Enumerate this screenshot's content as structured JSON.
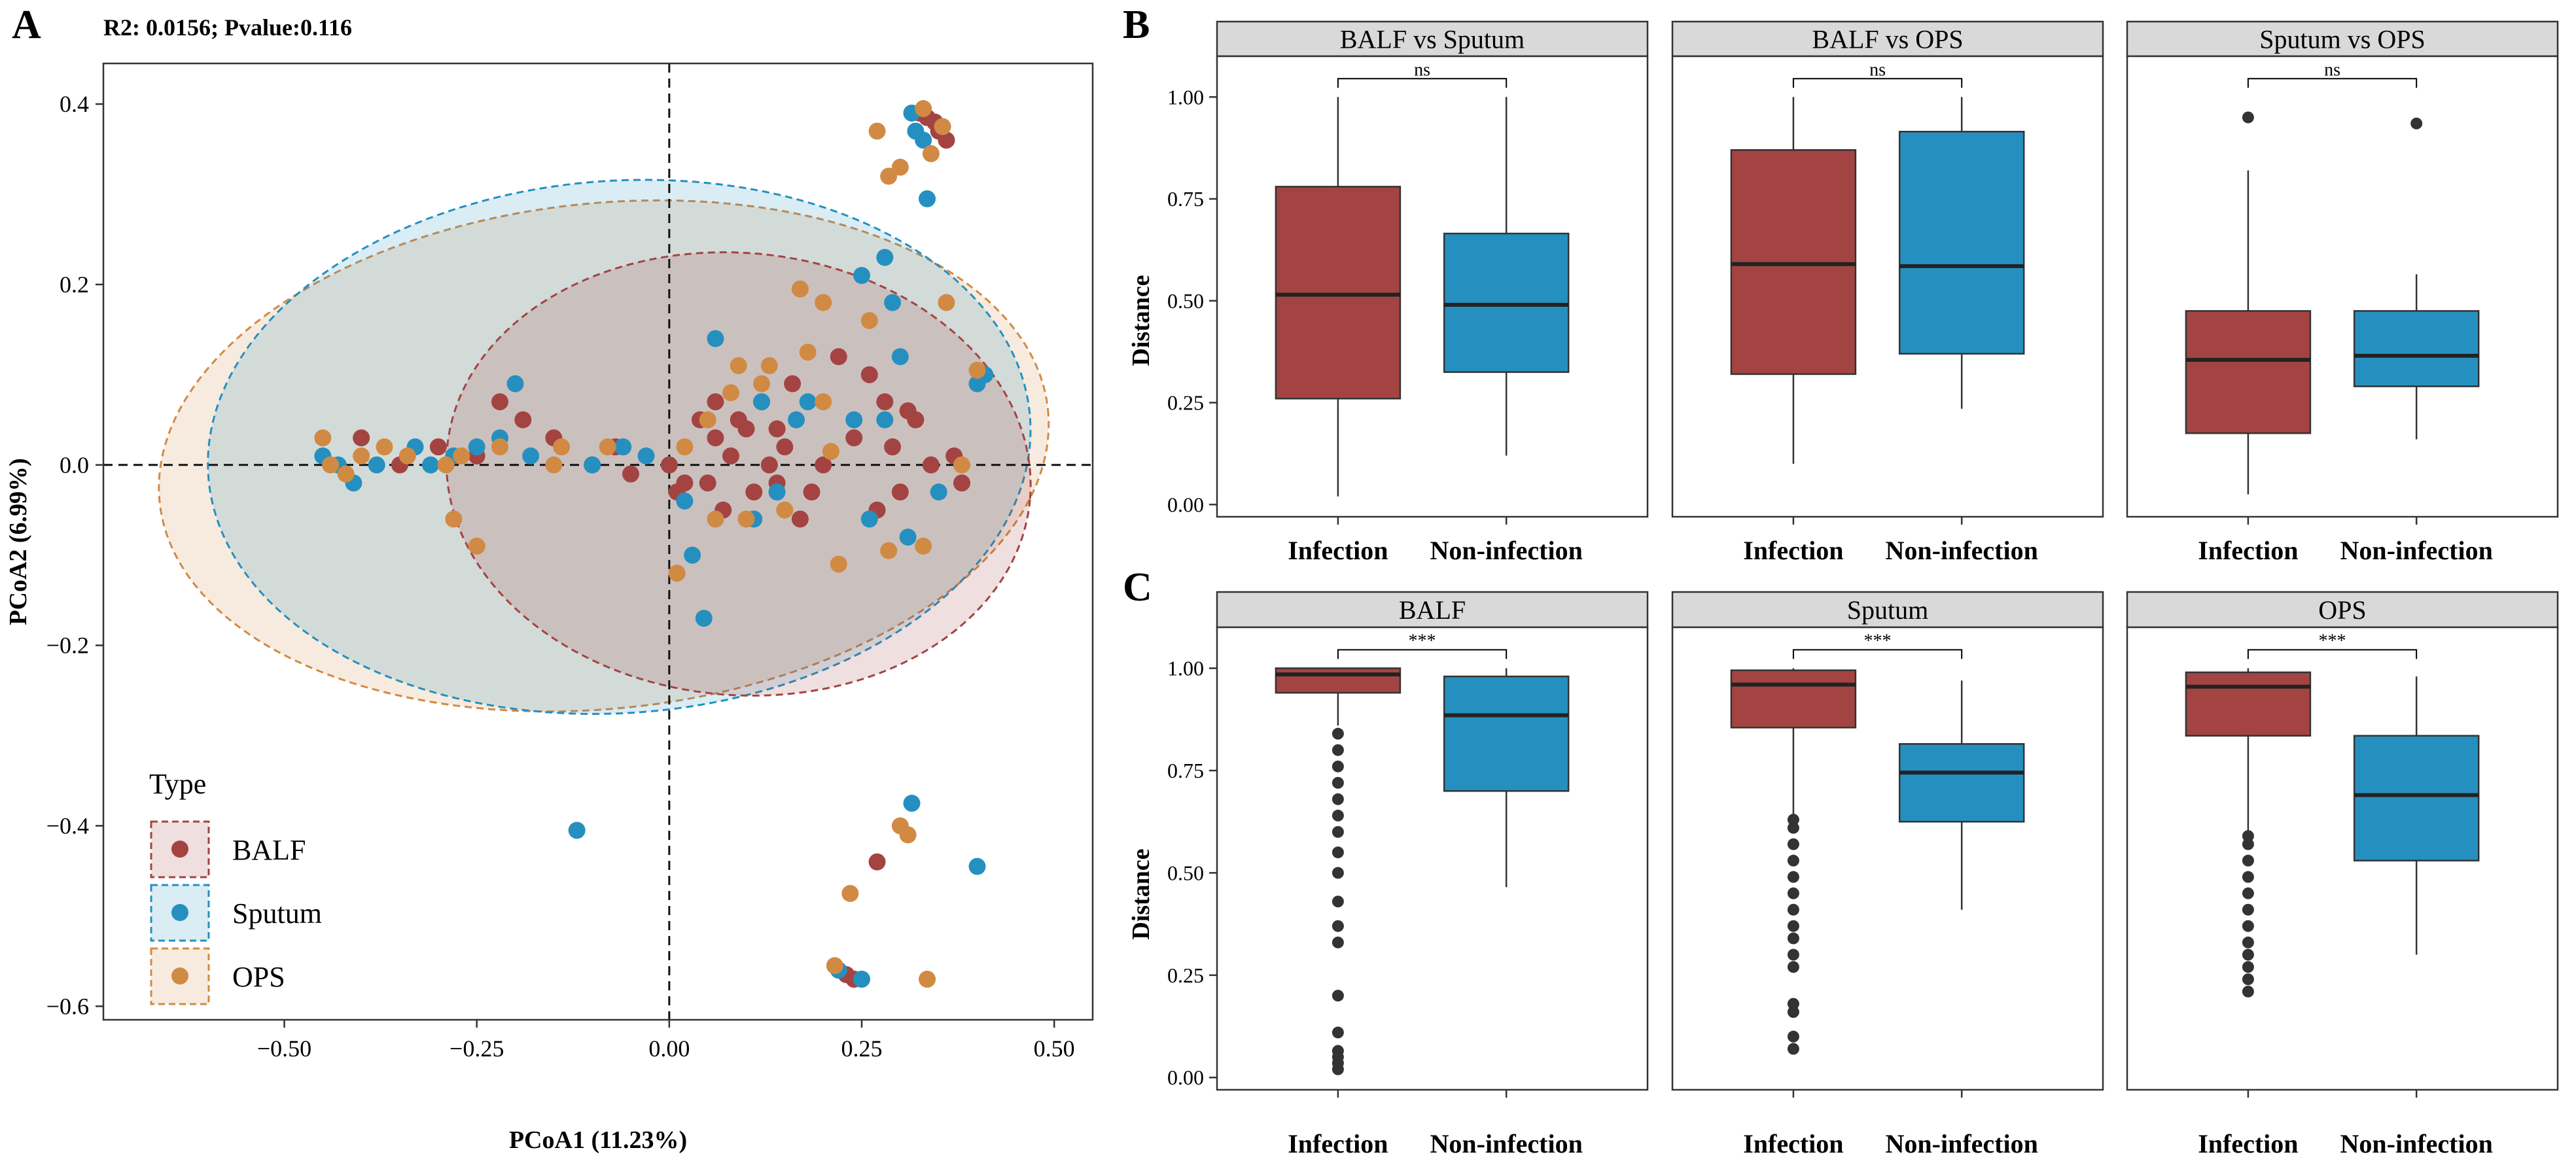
{
  "colors": {
    "BALF": "#a34442",
    "Sputum": "#2590bf",
    "OPS": "#d18a43",
    "strip_bg": "#d9d9d9",
    "panel_border": "#333333"
  },
  "chart_data": [
    {
      "panel": "A",
      "type": "scatter",
      "title": "R2: 0.0156; Pvalue:0.116",
      "xlabel": "PCoA1 (11.23%)",
      "ylabel": "PCoA2 (6.99%)",
      "xlim": [
        -0.735,
        0.55
      ],
      "ylim": [
        -0.615,
        0.445
      ],
      "xticks": [
        -0.5,
        -0.25,
        0.0,
        0.25,
        0.5
      ],
      "xtick_labels": [
        "−0.50",
        "−0.25",
        "0.00",
        "0.25",
        "0.50"
      ],
      "yticks": [
        -0.6,
        -0.4,
        -0.2,
        0.0,
        0.2,
        0.4
      ],
      "ytick_labels": [
        "−0.6",
        "−0.4",
        "−0.2",
        "0.0",
        "0.2",
        "0.4"
      ],
      "reference_lines": {
        "x": 0,
        "y": 0
      },
      "legend": {
        "title": "Type",
        "position": "bottom-left",
        "entries": [
          "BALF",
          "Sputum",
          "OPS"
        ]
      },
      "ellipses": [
        {
          "group": "OPS",
          "cx": -0.085,
          "cy": 0.01,
          "rx": 0.58,
          "ry": 0.28,
          "angle_deg": 6
        },
        {
          "group": "Sputum",
          "cx": -0.065,
          "cy": 0.02,
          "rx": 0.535,
          "ry": 0.295,
          "angle_deg": 4
        },
        {
          "group": "BALF",
          "cx": 0.09,
          "cy": -0.01,
          "rx": 0.38,
          "ry": 0.245,
          "angle_deg": -5
        }
      ],
      "series": [
        {
          "name": "BALF",
          "points": [
            [
              0.325,
              0.39
            ],
            [
              0.335,
              0.385
            ],
            [
              0.345,
              0.38
            ],
            [
              0.35,
              0.37
            ],
            [
              0.36,
              0.36
            ],
            [
              -0.22,
              0.07
            ],
            [
              -0.19,
              0.05
            ],
            [
              -0.15,
              0.03
            ],
            [
              -0.1,
              0.0
            ],
            [
              -0.05,
              -0.01
            ],
            [
              0.0,
              0.0
            ],
            [
              0.02,
              -0.02
            ],
            [
              0.04,
              0.05
            ],
            [
              0.06,
              0.03
            ],
            [
              0.08,
              0.01
            ],
            [
              0.1,
              0.04
            ],
            [
              0.12,
              0.07
            ],
            [
              0.14,
              -0.02
            ],
            [
              0.15,
              0.02
            ],
            [
              0.17,
              -0.06
            ],
            [
              0.2,
              0.0
            ],
            [
              0.22,
              0.12
            ],
            [
              0.26,
              0.1
            ],
            [
              0.28,
              0.07
            ],
            [
              0.3,
              -0.03
            ],
            [
              0.32,
              0.05
            ],
            [
              0.34,
              0.0
            ],
            [
              0.05,
              -0.02
            ],
            [
              0.07,
              -0.05
            ],
            [
              0.09,
              0.05
            ],
            [
              0.11,
              -0.03
            ],
            [
              0.13,
              0.0
            ],
            [
              0.16,
              0.09
            ],
            [
              -0.4,
              0.03
            ],
            [
              -0.35,
              0.0
            ],
            [
              -0.3,
              0.02
            ],
            [
              -0.25,
              0.01
            ],
            [
              0.24,
              0.03
            ],
            [
              0.27,
              -0.05
            ],
            [
              0.29,
              0.02
            ],
            [
              0.31,
              0.06
            ],
            [
              0.37,
              0.01
            ],
            [
              0.38,
              -0.02
            ],
            [
              0.185,
              -0.03
            ],
            [
              0.14,
              0.04
            ],
            [
              0.06,
              0.07
            ],
            [
              0.01,
              -0.03
            ],
            [
              -0.07,
              0.02
            ],
            [
              0.27,
              -0.44
            ],
            [
              0.23,
              -0.565
            ],
            [
              0.24,
              -0.57
            ]
          ]
        },
        {
          "name": "Sputum",
          "points": [
            [
              0.315,
              0.39
            ],
            [
              0.32,
              0.37
            ],
            [
              0.33,
              0.36
            ],
            [
              0.335,
              0.295
            ],
            [
              0.28,
              0.23
            ],
            [
              0.29,
              0.18
            ],
            [
              0.25,
              0.21
            ],
            [
              0.3,
              0.12
            ],
            [
              0.28,
              0.05
            ],
            [
              0.31,
              -0.08
            ],
            [
              0.35,
              -0.03
            ],
            [
              0.41,
              0.1
            ],
            [
              0.4,
              0.09
            ],
            [
              -0.45,
              0.01
            ],
            [
              -0.43,
              0.0
            ],
            [
              -0.41,
              -0.02
            ],
            [
              -0.38,
              0.0
            ],
            [
              -0.33,
              0.02
            ],
            [
              -0.31,
              0.0
            ],
            [
              -0.28,
              0.01
            ],
            [
              -0.25,
              0.02
            ],
            [
              -0.22,
              0.03
            ],
            [
              -0.18,
              0.01
            ],
            [
              -0.2,
              0.09
            ],
            [
              -0.1,
              0.0
            ],
            [
              -0.06,
              0.02
            ],
            [
              -0.03,
              0.01
            ],
            [
              0.02,
              -0.04
            ],
            [
              0.06,
              0.14
            ],
            [
              0.12,
              0.07
            ],
            [
              0.14,
              -0.03
            ],
            [
              0.18,
              0.07
            ],
            [
              0.24,
              0.05
            ],
            [
              0.26,
              -0.06
            ],
            [
              0.03,
              -0.1
            ],
            [
              0.045,
              -0.17
            ],
            [
              -0.12,
              -0.405
            ],
            [
              0.315,
              -0.375
            ],
            [
              0.4,
              -0.445
            ],
            [
              0.22,
              -0.56
            ],
            [
              0.25,
              -0.57
            ],
            [
              0.165,
              0.05
            ],
            [
              0.11,
              -0.06
            ]
          ]
        },
        {
          "name": "OPS",
          "points": [
            [
              0.33,
              0.395
            ],
            [
              0.355,
              0.375
            ],
            [
              0.34,
              0.345
            ],
            [
              0.3,
              0.33
            ],
            [
              0.285,
              0.32
            ],
            [
              0.27,
              0.37
            ],
            [
              0.36,
              0.18
            ],
            [
              0.4,
              0.105
            ],
            [
              0.38,
              0.0
            ],
            [
              0.33,
              -0.09
            ],
            [
              0.285,
              -0.095
            ],
            [
              0.26,
              0.16
            ],
            [
              0.2,
              0.18
            ],
            [
              0.17,
              0.195
            ],
            [
              0.18,
              0.125
            ],
            [
              0.13,
              0.11
            ],
            [
              0.08,
              0.08
            ],
            [
              0.05,
              0.05
            ],
            [
              0.02,
              0.02
            ],
            [
              0.06,
              -0.06
            ],
            [
              0.1,
              -0.06
            ],
            [
              0.15,
              -0.05
            ],
            [
              0.2,
              0.07
            ],
            [
              0.21,
              0.015
            ],
            [
              -0.45,
              0.03
            ],
            [
              -0.44,
              0.0
            ],
            [
              -0.42,
              -0.01
            ],
            [
              -0.4,
              0.01
            ],
            [
              -0.37,
              0.02
            ],
            [
              -0.34,
              0.01
            ],
            [
              -0.29,
              0.0
            ],
            [
              -0.27,
              0.01
            ],
            [
              -0.22,
              0.02
            ],
            [
              -0.15,
              0.0
            ],
            [
              -0.08,
              0.02
            ],
            [
              -0.14,
              0.02
            ],
            [
              -0.25,
              -0.09
            ],
            [
              -0.28,
              -0.06
            ],
            [
              0.01,
              -0.12
            ],
            [
              0.22,
              -0.11
            ],
            [
              0.09,
              0.11
            ],
            [
              0.12,
              0.09
            ],
            [
              0.3,
              -0.4
            ],
            [
              0.31,
              -0.41
            ],
            [
              0.235,
              -0.475
            ],
            [
              0.215,
              -0.555
            ],
            [
              0.335,
              -0.57
            ]
          ]
        }
      ]
    },
    {
      "panel": "B",
      "type": "boxplot",
      "ylabel": "Distance",
      "ylim": [
        -0.03,
        1.1
      ],
      "yticks": [
        0.0,
        0.25,
        0.5,
        0.75,
        1.0
      ],
      "ytick_labels": [
        "0.00",
        "0.25",
        "0.50",
        "0.75",
        "1.00"
      ],
      "categories": [
        "Infection",
        "Non-infection"
      ],
      "facets": [
        {
          "title": "BALF vs Sputum",
          "significance": "ns",
          "boxes": [
            {
              "category": "Infection",
              "min": 0.02,
              "q1": 0.26,
              "median": 0.515,
              "q3": 0.78,
              "max": 1.0,
              "outliers": []
            },
            {
              "category": "Non-infection",
              "min": 0.12,
              "q1": 0.325,
              "median": 0.49,
              "q3": 0.665,
              "max": 1.0,
              "outliers": []
            }
          ]
        },
        {
          "title": "BALF vs OPS",
          "significance": "ns",
          "boxes": [
            {
              "category": "Infection",
              "min": 0.1,
              "q1": 0.32,
              "median": 0.59,
              "q3": 0.87,
              "max": 1.0,
              "outliers": []
            },
            {
              "category": "Non-infection",
              "min": 0.235,
              "q1": 0.37,
              "median": 0.585,
              "q3": 0.915,
              "max": 1.0,
              "outliers": []
            }
          ]
        },
        {
          "title": "Sputum vs OPS",
          "significance": "ns",
          "boxes": [
            {
              "category": "Infection",
              "min": 0.025,
              "q1": 0.175,
              "median": 0.355,
              "q3": 0.475,
              "max": 0.82,
              "outliers": [
                0.95
              ]
            },
            {
              "category": "Non-infection",
              "min": 0.16,
              "q1": 0.29,
              "median": 0.365,
              "q3": 0.475,
              "max": 0.565,
              "outliers": [
                0.935
              ]
            }
          ]
        }
      ]
    },
    {
      "panel": "C",
      "type": "boxplot",
      "ylabel": "Distance",
      "ylim": [
        -0.03,
        1.1
      ],
      "yticks": [
        0.0,
        0.25,
        0.5,
        0.75,
        1.0
      ],
      "ytick_labels": [
        "0.00",
        "0.25",
        "0.50",
        "0.75",
        "1.00"
      ],
      "categories": [
        "Infection",
        "Non-infection"
      ],
      "facets": [
        {
          "title": "BALF",
          "significance": "***",
          "boxes": [
            {
              "category": "Infection",
              "min": 0.86,
              "q1": 0.94,
              "median": 0.985,
              "q3": 1.0,
              "max": 1.0,
              "outliers": [
                0.02,
                0.035,
                0.05,
                0.065,
                0.11,
                0.2,
                0.33,
                0.37,
                0.43,
                0.5,
                0.55,
                0.6,
                0.64,
                0.68,
                0.72,
                0.76,
                0.8,
                0.84
              ]
            },
            {
              "category": "Non-infection",
              "min": 0.465,
              "q1": 0.7,
              "median": 0.885,
              "q3": 0.98,
              "max": 1.0,
              "outliers": []
            }
          ]
        },
        {
          "title": "Sputum",
          "significance": "***",
          "boxes": [
            {
              "category": "Infection",
              "min": 0.64,
              "q1": 0.855,
              "median": 0.96,
              "q3": 0.995,
              "max": 1.0,
              "outliers": [
                0.07,
                0.1,
                0.16,
                0.18,
                0.27,
                0.3,
                0.34,
                0.37,
                0.41,
                0.45,
                0.49,
                0.53,
                0.57,
                0.61,
                0.63
              ]
            },
            {
              "category": "Non-infection",
              "min": 0.41,
              "q1": 0.625,
              "median": 0.745,
              "q3": 0.815,
              "max": 0.97,
              "outliers": []
            }
          ]
        },
        {
          "title": "OPS",
          "significance": "***",
          "boxes": [
            {
              "category": "Infection",
              "min": 0.6,
              "q1": 0.835,
              "median": 0.955,
              "q3": 0.99,
              "max": 1.0,
              "outliers": [
                0.21,
                0.24,
                0.27,
                0.3,
                0.33,
                0.37,
                0.41,
                0.45,
                0.49,
                0.53,
                0.57,
                0.59
              ]
            },
            {
              "category": "Non-infection",
              "min": 0.3,
              "q1": 0.53,
              "median": 0.69,
              "q3": 0.835,
              "max": 0.98,
              "outliers": []
            }
          ]
        }
      ]
    }
  ]
}
